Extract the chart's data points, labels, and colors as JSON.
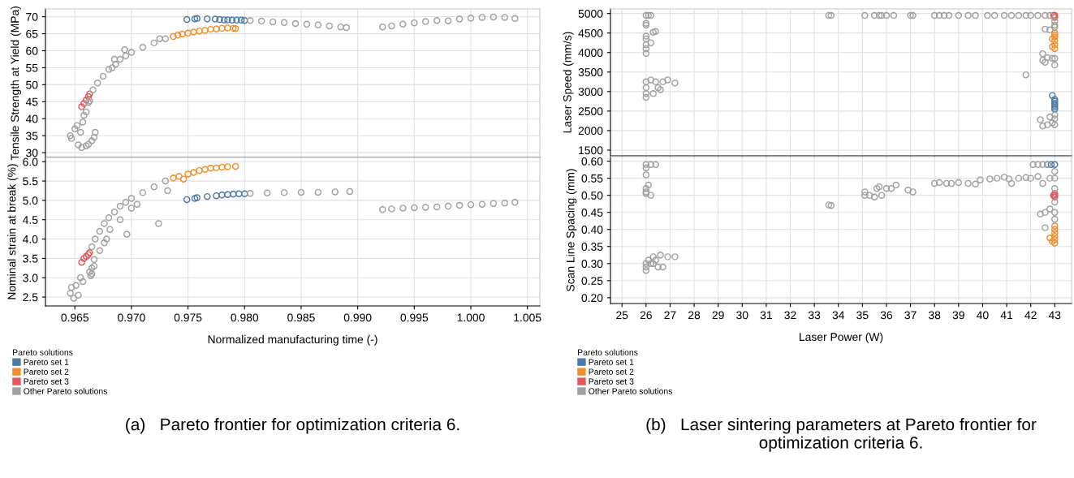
{
  "chart_data": [
    {
      "type": "scatter",
      "ylabel": "Tensile Strength at Yield (MPa)",
      "xlim": [
        0.9624,
        1.0061
      ],
      "xticks": [
        0.965,
        0.97,
        0.975,
        0.98,
        0.985,
        0.99,
        0.995,
        1.0,
        1.005
      ],
      "ylim": [
        28.6,
        72.3
      ],
      "yticks": [
        30,
        35,
        40,
        45,
        50,
        55,
        60,
        65,
        70
      ],
      "tick_labels": "y",
      "grid": true,
      "marker": "circle",
      "legend": "bottom",
      "legend_title": "Pareto solutions",
      "series": [
        {
          "name": "Pareto set 1",
          "color": "#4e79a7",
          "x": [
            0.9749,
            0.9756,
            0.9758,
            0.9767,
            0.9774,
            0.9778,
            0.9782,
            0.9785,
            0.9789,
            0.9793,
            0.9797,
            0.98
          ],
          "values": [
            69.2,
            69.4,
            69.5,
            69.4,
            69.3,
            69.2,
            69.1,
            69.1,
            69.0,
            69.0,
            69.0,
            68.9
          ]
        },
        {
          "name": "Pareto set 2",
          "color": "#f28e2b",
          "x": [
            0.9737,
            0.9741,
            0.9745,
            0.975,
            0.9755,
            0.976,
            0.9765,
            0.977,
            0.9775,
            0.978,
            0.9785,
            0.979,
            0.9792
          ],
          "values": [
            64.2,
            64.6,
            64.9,
            65.2,
            65.5,
            65.8,
            66.0,
            66.3,
            66.4,
            66.6,
            66.7,
            66.6,
            66.5
          ]
        },
        {
          "name": "Pareto set 3",
          "color": "#e15759",
          "x": [
            0.9656,
            0.9658,
            0.966,
            0.9662,
            0.9663
          ],
          "values": [
            43.5,
            44.5,
            45.5,
            46.5,
            47.3
          ]
        },
        {
          "name": "Other Pareto solutions",
          "color": "#a0a0a0",
          "x": [
            0.9646,
            0.9647,
            0.965,
            0.9652,
            0.9655,
            0.9653,
            0.9656,
            0.966,
            0.9662,
            0.9665,
            0.9667,
            0.9668,
            0.9657,
            0.9658,
            0.9662,
            0.9663,
            0.966,
            0.9666,
            0.967,
            0.9675,
            0.968,
            0.9686,
            0.969,
            0.9695,
            0.97,
            0.971,
            0.972,
            0.973,
            0.9683,
            0.9685,
            0.9694,
            0.9725,
            0.9805,
            0.9815,
            0.9825,
            0.9835,
            0.9845,
            0.9855,
            0.9865,
            0.9875,
            0.9885,
            0.989,
            0.9922,
            0.993,
            0.994,
            0.995,
            0.996,
            0.997,
            0.998,
            0.999,
            1.0,
            1.001,
            1.002,
            1.003,
            1.0039
          ],
          "values": [
            35,
            34.2,
            37,
            38,
            36,
            32.3,
            31.5,
            32,
            32.5,
            33.5,
            34.5,
            36.0,
            39,
            41,
            44.8,
            45.2,
            42,
            48.5,
            50.5,
            52.5,
            54.5,
            56,
            57.5,
            58.5,
            59.5,
            61,
            62.3,
            63.5,
            55,
            57.5,
            60.3,
            63.5,
            68.9,
            68.7,
            68.5,
            68.3,
            68.0,
            67.8,
            67.6,
            67.3,
            67.0,
            66.8,
            67,
            67.3,
            67.8,
            68.2,
            68.6,
            68.9,
            68.8,
            69.3,
            69.6,
            69.8,
            69.9,
            69.8,
            69.5
          ]
        }
      ]
    },
    {
      "type": "scatter",
      "xlabel": "Normalized manufacturing time (-)",
      "ylabel": "Nominal strain at break (%)",
      "xlim": [
        0.9624,
        1.0061
      ],
      "xticks": [
        {
          "value": 0.965,
          "label": "0.965"
        },
        {
          "value": 0.97,
          "label": "0.970"
        },
        {
          "value": 0.975,
          "label": "0.975"
        },
        {
          "value": 0.98,
          "label": "0.980"
        },
        {
          "value": 0.985,
          "label": "0.985"
        },
        {
          "value": 0.99,
          "label": "0.990"
        },
        {
          "value": 0.995,
          "label": "0.995"
        },
        {
          "value": 1.0,
          "label": "1.000"
        },
        {
          "value": 1.005,
          "label": "1.005"
        }
      ],
      "ylim": [
        2.27,
        6.11
      ],
      "yticks": [
        {
          "value": 2.5,
          "label": "2.5"
        },
        {
          "value": 3,
          "label": "3.0"
        },
        {
          "value": 3.5,
          "label": "3.5"
        },
        {
          "value": 4,
          "label": "4.0"
        },
        {
          "value": 4.5,
          "label": "4.5"
        },
        {
          "value": 5,
          "label": "5.0"
        },
        {
          "value": 5.5,
          "label": "5.5"
        },
        {
          "value": 6,
          "label": "6.0"
        }
      ],
      "grid": true,
      "marker": "circle",
      "annotations": [
        "(a)   Pareto frontier for optimization criteria 6."
      ],
      "series": [
        {
          "color": "#4e79a7",
          "x": [
            0.9749,
            0.9756,
            0.9758,
            0.9767,
            0.9775,
            0.978,
            0.9785,
            0.979,
            0.9795,
            0.98
          ],
          "values": [
            5.02,
            5.05,
            5.07,
            5.1,
            5.12,
            5.14,
            5.15,
            5.16,
            5.17,
            5.17
          ]
        },
        {
          "color": "#f28e2b",
          "x": [
            0.9737,
            0.9742,
            0.9746,
            0.975,
            0.9755,
            0.976,
            0.9765,
            0.977,
            0.9775,
            0.978,
            0.9785,
            0.9792
          ],
          "values": [
            5.58,
            5.62,
            5.55,
            5.68,
            5.72,
            5.77,
            5.8,
            5.83,
            5.84,
            5.86,
            5.87,
            5.88
          ]
        },
        {
          "color": "#e15759",
          "x": [
            0.9656,
            0.9658,
            0.966,
            0.9662,
            0.9663
          ],
          "values": [
            3.4,
            3.5,
            3.55,
            3.6,
            3.65
          ]
        },
        {
          "color": "#a0a0a0",
          "x": [
            0.9646,
            0.9647,
            0.9649,
            0.9651,
            0.9653,
            0.9655,
            0.9657,
            0.9663,
            0.9665,
            0.9667,
            0.9664,
            0.9665,
            0.9667,
            0.9672,
            0.9676,
            0.9678,
            0.9681,
            0.9696,
            0.9724,
            0.9732,
            0.9665,
            0.9668,
            0.9672,
            0.9676,
            0.968,
            0.9685,
            0.969,
            0.9695,
            0.97,
            0.971,
            0.972,
            0.973,
            0.969,
            0.97,
            0.9705,
            0.9805,
            0.982,
            0.9835,
            0.985,
            0.9865,
            0.988,
            0.9893,
            0.9922,
            0.993,
            0.994,
            0.995,
            0.996,
            0.997,
            0.998,
            0.999,
            1.0,
            1.001,
            1.002,
            1.003,
            1.0039
          ],
          "values": [
            2.6,
            2.75,
            2.47,
            2.8,
            2.55,
            3.0,
            2.9,
            3.15,
            3.25,
            3.3,
            3.05,
            3.1,
            3.47,
            3.7,
            3.9,
            4.0,
            4.25,
            4.12,
            4.4,
            5.25,
            3.8,
            4.0,
            4.2,
            4.4,
            4.55,
            4.7,
            4.85,
            4.95,
            5.05,
            5.2,
            5.35,
            5.5,
            4.5,
            4.8,
            4.9,
            5.18,
            5.19,
            5.2,
            5.21,
            5.21,
            5.22,
            5.23,
            4.76,
            4.78,
            4.8,
            4.81,
            4.82,
            4.83,
            4.85,
            4.87,
            4.89,
            4.9,
            4.92,
            4.93,
            4.95
          ]
        }
      ]
    },
    {
      "type": "scatter",
      "ylabel": "Laser Speed (mm/s)",
      "xlim": [
        24.52,
        43.7
      ],
      "xticks": [
        25,
        26,
        27,
        28,
        29,
        30,
        31,
        32,
        33,
        34,
        35,
        36,
        37,
        38,
        39,
        40,
        41,
        42,
        43
      ],
      "ylim": [
        1354,
        5117
      ],
      "yticks": [
        1500,
        2000,
        2500,
        3000,
        3500,
        4000,
        4500,
        5000
      ],
      "tick_labels": "y",
      "grid": true,
      "marker": "circle",
      "legend": "bottom",
      "legend_title": "Pareto solutions",
      "series": [
        {
          "name": "Pareto set 1",
          "color": "#4e79a7",
          "x": [
            42.9,
            43,
            43,
            43,
            43,
            43,
            43
          ],
          "values": [
            2900,
            2800,
            2700,
            2650,
            2600,
            2550,
            2750
          ]
        },
        {
          "name": "Pareto set 2",
          "color": "#f28e2b",
          "x": [
            43,
            43,
            43,
            43,
            43,
            42.9,
            42.9,
            43
          ],
          "values": [
            4500,
            4400,
            4300,
            4200,
            4100,
            4350,
            4150,
            4450
          ]
        },
        {
          "name": "Pareto set 3",
          "color": "#e15759",
          "x": [
            43,
            42.95,
            43
          ],
          "values": [
            4950,
            4950,
            4900
          ]
        },
        {
          "name": "Other Pareto solutions",
          "color": "#a0a0a0",
          "x": [
            26,
            26.1,
            26.2,
            26,
            26,
            26,
            26,
            26,
            26,
            26,
            26.3,
            26.4,
            26.2,
            26,
            26,
            26,
            26,
            26.2,
            26.4,
            26.5,
            26.7,
            26.9,
            27.2,
            26.3,
            26.6,
            33.6,
            33.7,
            35.1,
            35.5,
            35.7,
            35.8,
            36.0,
            36.3,
            37.0,
            37.1,
            38.0,
            38.2,
            38.4,
            38.6,
            39.0,
            39.4,
            39.7,
            40.2,
            40.5,
            40.9,
            41.2,
            41.5,
            41.8,
            42.0,
            42.3,
            42.6,
            42.8,
            43,
            43,
            43,
            42.6,
            42.8,
            43,
            42.5,
            42.5,
            42.6,
            42.7,
            42.9,
            43,
            41.8,
            42.4,
            42.5,
            42.7,
            42.9,
            43,
            43,
            43,
            42.8
          ],
          "values": [
            4950,
            4950,
            4950,
            4750,
            4700,
            4420,
            4350,
            4200,
            4100,
            3980,
            4520,
            4540,
            4250,
            3250,
            3100,
            2950,
            2850,
            3300,
            3250,
            3100,
            3250,
            3300,
            3220,
            2950,
            3050,
            4950,
            4950,
            4950,
            4950,
            4950,
            4950,
            4950,
            4950,
            4950,
            4950,
            4950,
            4950,
            4950,
            4950,
            4950,
            4950,
            4950,
            4950,
            4950,
            4950,
            4950,
            4950,
            4950,
            4950,
            4950,
            4950,
            4950,
            4800,
            4700,
            4650,
            4600,
            4580,
            3850,
            3970,
            3800,
            3750,
            3870,
            3850,
            3680,
            3430,
            2280,
            2120,
            2150,
            2200,
            2300,
            2150,
            2400,
            2350
          ]
        }
      ]
    },
    {
      "type": "scatter",
      "xlabel": "Laser Power (W)",
      "ylabel": "Scan Line Spacing (mm)",
      "xlim": [
        24.52,
        43.7
      ],
      "xticks": [
        25,
        26,
        27,
        28,
        29,
        30,
        31,
        32,
        33,
        34,
        35,
        36,
        37,
        38,
        39,
        40,
        41,
        42,
        43
      ],
      "ylim": [
        0.183,
        0.6133
      ],
      "yticks": [
        {
          "value": 0.2,
          "label": "0.20"
        },
        {
          "value": 0.25,
          "label": "0.25"
        },
        {
          "value": 0.3,
          "label": "0.30"
        },
        {
          "value": 0.35,
          "label": "0.35"
        },
        {
          "value": 0.4,
          "label": "0.40"
        },
        {
          "value": 0.45,
          "label": "0.45"
        },
        {
          "value": 0.5,
          "label": "0.50"
        },
        {
          "value": 0.55,
          "label": "0.55"
        },
        {
          "value": 0.6,
          "label": "0.60"
        }
      ],
      "grid": true,
      "marker": "circle",
      "annotations": [
        "(b)   Laser sintering parameters at Pareto frontier for optimization criteria 6."
      ],
      "series": [
        {
          "color": "#4e79a7",
          "x": [
            42.7,
            42.85,
            43
          ],
          "values": [
            0.59,
            0.59,
            0.59
          ]
        },
        {
          "color": "#f28e2b",
          "x": [
            43,
            43,
            43,
            43,
            43,
            43,
            42.8,
            42.9
          ],
          "values": [
            0.41,
            0.4,
            0.39,
            0.38,
            0.37,
            0.36,
            0.375,
            0.365
          ]
        },
        {
          "color": "#e15759",
          "x": [
            43,
            43,
            43,
            42.95
          ],
          "values": [
            0.505,
            0.5,
            0.495,
            0.5
          ]
        },
        {
          "color": "#a0a0a0",
          "x": [
            26,
            26,
            26.2,
            26.4,
            26,
            26,
            26,
            26,
            26.1,
            26.2,
            26,
            26,
            26,
            26.1,
            26.2,
            26.3,
            26.4,
            26.5,
            26.6,
            26.7,
            26.9,
            27.2,
            26.3,
            33.6,
            33.7,
            35.1,
            35.1,
            35.3,
            35.5,
            35.6,
            35.7,
            35.8,
            36.0,
            36.2,
            36.4,
            36.9,
            37.1,
            38.0,
            38.2,
            38.5,
            38.7,
            39.0,
            39.4,
            39.7,
            39.9,
            40.3,
            40.6,
            40.9,
            41.1,
            41.2,
            41.5,
            41.8,
            42.0,
            42.3,
            42.1,
            42.3,
            42.5,
            42.7,
            43,
            43,
            43,
            43,
            43,
            43,
            42.4,
            42.6,
            42.8,
            42.5,
            42.8,
            42.6
          ],
          "values": [
            0.59,
            0.58,
            0.59,
            0.59,
            0.56,
            0.52,
            0.51,
            0.505,
            0.53,
            0.5,
            0.3,
            0.29,
            0.28,
            0.31,
            0.3,
            0.32,
            0.31,
            0.29,
            0.325,
            0.29,
            0.32,
            0.32,
            0.3,
            0.472,
            0.47,
            0.51,
            0.5,
            0.5,
            0.495,
            0.52,
            0.525,
            0.5,
            0.52,
            0.52,
            0.53,
            0.515,
            0.51,
            0.535,
            0.537,
            0.535,
            0.535,
            0.537,
            0.535,
            0.533,
            0.545,
            0.548,
            0.55,
            0.553,
            0.548,
            0.535,
            0.55,
            0.552,
            0.55,
            0.555,
            0.59,
            0.59,
            0.59,
            0.59,
            0.57,
            0.55,
            0.52,
            0.48,
            0.45,
            0.43,
            0.445,
            0.45,
            0.46,
            0.535,
            0.55,
            0.405
          ]
        }
      ]
    }
  ]
}
